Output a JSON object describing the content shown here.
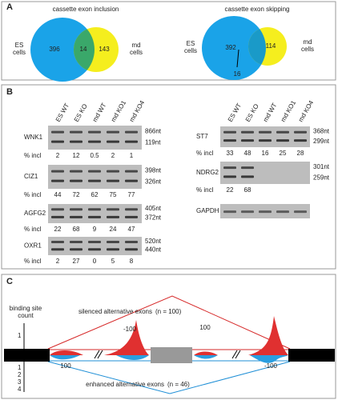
{
  "panel_a": {
    "label": "A",
    "venns": [
      {
        "title": "cassette exon inclusion",
        "left_label": [
          "ES",
          "cells"
        ],
        "right_label": [
          "md",
          "cells"
        ],
        "left_only": 396,
        "overlap": 14,
        "right_only": 143
      },
      {
        "title": "cassette exon skipping",
        "left_label": [
          "ES",
          "cells"
        ],
        "right_label": [
          "md",
          "cells"
        ],
        "left_only": 392,
        "overlap": 16,
        "right_only": 114
      }
    ]
  },
  "panel_b": {
    "label": "B",
    "incl_label": "% incl",
    "lanes": [
      "ES WT",
      "ES KO",
      "md WT",
      "md KO1",
      "md KO4"
    ],
    "left": [
      {
        "name": "WNK1",
        "sizes": [
          "866nt",
          "119nt"
        ],
        "incl": [
          2,
          12,
          0.5,
          2,
          1
        ]
      },
      {
        "name": "CIZ1",
        "sizes": [
          "398nt",
          "326nt"
        ],
        "incl": [
          44,
          72,
          62,
          75,
          77
        ]
      },
      {
        "name": "AGFG2",
        "sizes": [
          "405nt",
          "372nt"
        ],
        "incl": [
          22,
          68,
          9,
          24,
          47
        ]
      },
      {
        "name": "OXR1",
        "sizes": [
          "520nt",
          "440nt"
        ],
        "incl": [
          2,
          27,
          0,
          5,
          8
        ]
      }
    ],
    "right": [
      {
        "name": "ST7",
        "sizes": [
          "368nt",
          "299nt"
        ],
        "incl": [
          33,
          48,
          16,
          25,
          28
        ]
      },
      {
        "name": "NDRG2",
        "sizes": [
          "301nt",
          "259nt"
        ],
        "incl": [
          22,
          68
        ]
      },
      {
        "name": "GAPDH",
        "sizes": [],
        "incl": []
      }
    ]
  },
  "panel_c": {
    "label": "C",
    "axis_title": [
      "binding site",
      "count"
    ],
    "ticks_above": [
      "1"
    ],
    "ticks_below": [
      "1",
      "2",
      "3",
      "4"
    ],
    "silenced": "silenced alternative exons",
    "silenced_n": "(n = 100)",
    "enhanced": "enhanced alternative exons",
    "enhanced_n": "(n = 46)",
    "peak_labels": [
      "100",
      "-100",
      "100",
      "-100"
    ]
  }
}
